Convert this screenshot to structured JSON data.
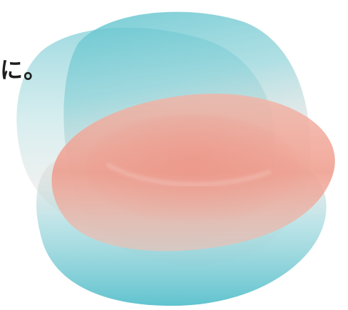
{
  "headline": {
    "text": "に。"
  },
  "colors": {
    "background": "#ffffff",
    "text": "#1e1e1e",
    "teal": "#5fc4cf",
    "teal_light": "#a9dde2",
    "coral": "#ee9a8c",
    "coral_light": "#f6c3b8",
    "pale": "#f3e9e7"
  }
}
